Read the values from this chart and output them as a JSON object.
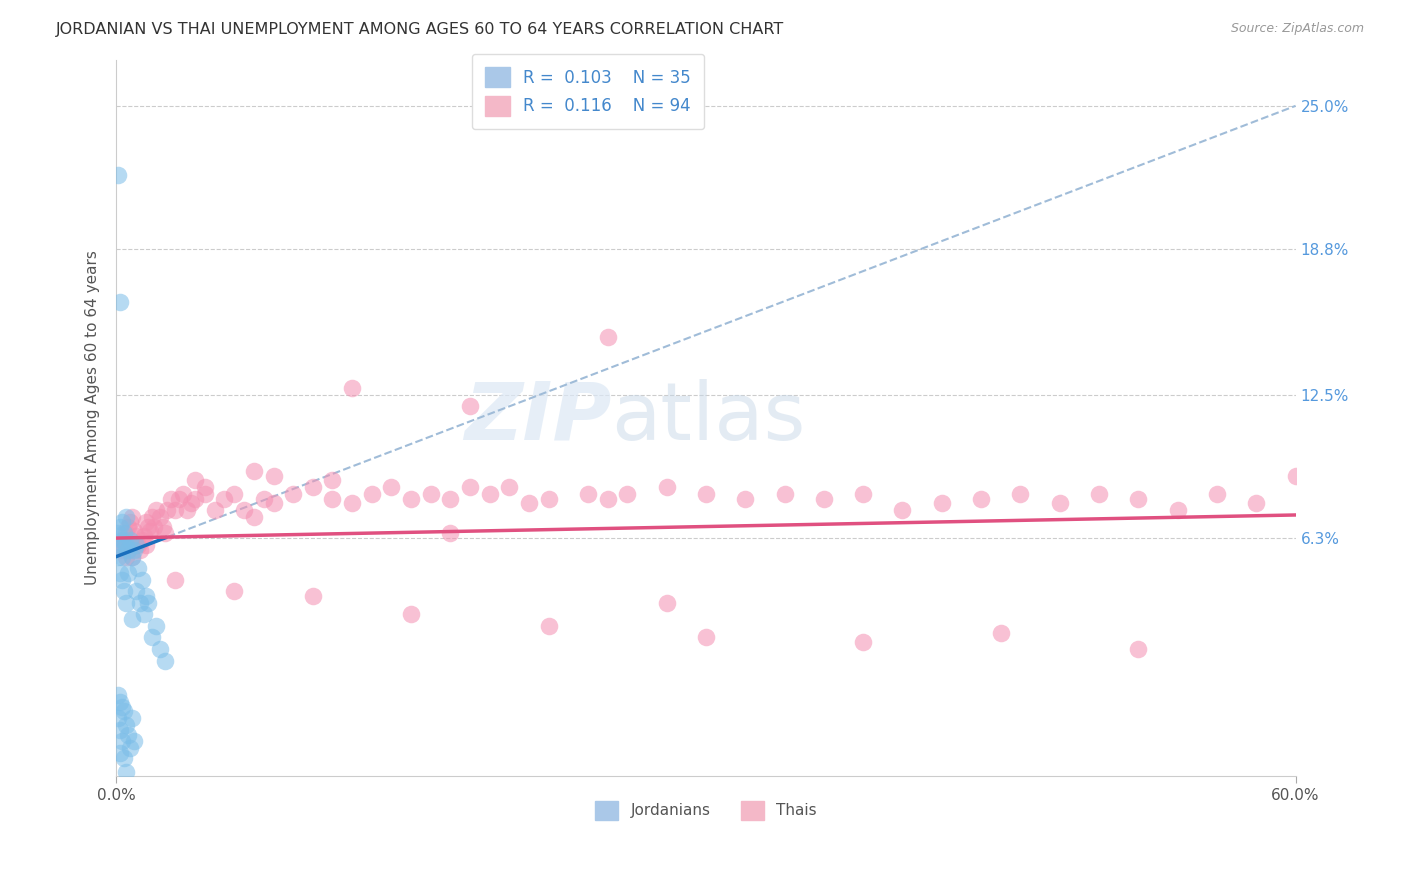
{
  "title": "JORDANIAN VS THAI UNEMPLOYMENT AMONG AGES 60 TO 64 YEARS CORRELATION CHART",
  "source": "Source: ZipAtlas.com",
  "ylabel": "Unemployment Among Ages 60 to 64 years",
  "xlim": [
    0.0,
    0.6
  ],
  "ylim": [
    -0.04,
    0.27
  ],
  "ytick_vals": [
    0.063,
    0.125,
    0.188,
    0.25
  ],
  "ytick_labels": [
    "6.3%",
    "12.5%",
    "18.8%",
    "25.0%"
  ],
  "background_color": "#ffffff",
  "grid_color": "#cccccc",
  "jordan_color": "#7bbde8",
  "thai_color": "#f48fb1",
  "jordan_line_color": "#1a6fbd",
  "thai_line_color": "#e05080",
  "dashed_line_color": "#a0bcd8",
  "jordan_N": 35,
  "thai_N": 94,
  "jordan_R": 0.103,
  "thai_R": 0.116,
  "jordan_x": [
    0.001,
    0.001,
    0.001,
    0.002,
    0.002,
    0.002,
    0.002,
    0.003,
    0.003,
    0.003,
    0.003,
    0.004,
    0.004,
    0.004,
    0.005,
    0.005,
    0.005,
    0.006,
    0.006,
    0.007,
    0.008,
    0.008,
    0.009,
    0.01,
    0.01,
    0.011,
    0.012,
    0.013,
    0.014,
    0.015,
    0.016,
    0.018,
    0.02,
    0.022,
    0.025
  ],
  "jordan_y": [
    0.22,
    0.065,
    0.055,
    0.165,
    0.068,
    0.06,
    0.048,
    0.07,
    0.062,
    0.055,
    0.045,
    0.065,
    0.06,
    0.04,
    0.072,
    0.06,
    0.035,
    0.058,
    0.048,
    0.062,
    0.055,
    0.028,
    0.058,
    0.06,
    0.04,
    0.05,
    0.035,
    0.045,
    0.03,
    0.038,
    0.035,
    0.02,
    0.025,
    0.015,
    0.01
  ],
  "jordan_neg_x": [
    0.001,
    0.001,
    0.002,
    0.002,
    0.002,
    0.003,
    0.003,
    0.004,
    0.004,
    0.005,
    0.005,
    0.006,
    0.007,
    0.008,
    0.009
  ],
  "jordan_neg_y": [
    -0.005,
    -0.015,
    -0.008,
    -0.02,
    -0.03,
    -0.01,
    -0.025,
    -0.012,
    -0.032,
    -0.018,
    -0.038,
    -0.022,
    -0.028,
    -0.015,
    -0.025
  ],
  "thai_x": [
    0.002,
    0.003,
    0.004,
    0.005,
    0.005,
    0.006,
    0.007,
    0.008,
    0.009,
    0.01,
    0.011,
    0.012,
    0.013,
    0.014,
    0.015,
    0.016,
    0.017,
    0.018,
    0.019,
    0.02,
    0.022,
    0.024,
    0.026,
    0.028,
    0.03,
    0.032,
    0.034,
    0.036,
    0.038,
    0.04,
    0.045,
    0.05,
    0.055,
    0.06,
    0.065,
    0.07,
    0.075,
    0.08,
    0.09,
    0.1,
    0.11,
    0.12,
    0.13,
    0.14,
    0.15,
    0.16,
    0.17,
    0.18,
    0.19,
    0.2,
    0.21,
    0.22,
    0.24,
    0.25,
    0.26,
    0.28,
    0.3,
    0.32,
    0.34,
    0.36,
    0.38,
    0.4,
    0.42,
    0.44,
    0.46,
    0.48,
    0.5,
    0.52,
    0.54,
    0.56,
    0.58,
    0.6,
    0.25,
    0.18,
    0.12,
    0.08,
    0.045,
    0.025,
    0.015,
    0.008,
    0.03,
    0.06,
    0.1,
    0.15,
    0.22,
    0.3,
    0.38,
    0.45,
    0.52,
    0.04,
    0.07,
    0.11,
    0.17,
    0.28
  ],
  "thai_y": [
    0.06,
    0.058,
    0.062,
    0.065,
    0.055,
    0.068,
    0.07,
    0.072,
    0.066,
    0.064,
    0.06,
    0.058,
    0.062,
    0.064,
    0.07,
    0.068,
    0.066,
    0.072,
    0.068,
    0.075,
    0.072,
    0.068,
    0.075,
    0.08,
    0.075,
    0.08,
    0.082,
    0.075,
    0.078,
    0.08,
    0.082,
    0.075,
    0.08,
    0.082,
    0.075,
    0.072,
    0.08,
    0.078,
    0.082,
    0.085,
    0.08,
    0.078,
    0.082,
    0.085,
    0.08,
    0.082,
    0.08,
    0.085,
    0.082,
    0.085,
    0.078,
    0.08,
    0.082,
    0.08,
    0.082,
    0.085,
    0.082,
    0.08,
    0.082,
    0.08,
    0.082,
    0.075,
    0.078,
    0.08,
    0.082,
    0.078,
    0.082,
    0.08,
    0.075,
    0.082,
    0.078,
    0.09,
    0.15,
    0.12,
    0.128,
    0.09,
    0.085,
    0.065,
    0.06,
    0.055,
    0.045,
    0.04,
    0.038,
    0.03,
    0.025,
    0.02,
    0.018,
    0.022,
    0.015,
    0.088,
    0.092,
    0.088,
    0.065,
    0.035
  ]
}
